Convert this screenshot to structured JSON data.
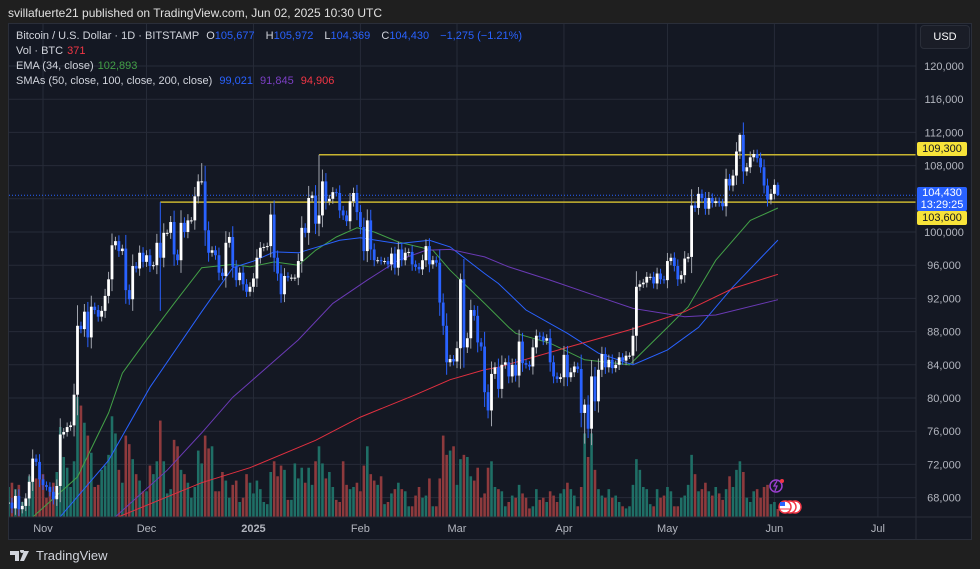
{
  "header": {
    "published": "svillafuerte21 published on TradingView.com, Jun 02, 2025 10:30 UTC"
  },
  "legend": {
    "symbol": "Bitcoin / U.S. Dollar · 1D · BITSTAMP",
    "open_label": "O",
    "open": "105,677",
    "high_label": "H",
    "high": "105,972",
    "low_label": "L",
    "low": "104,369",
    "close_label": "C",
    "close": "104,430",
    "change": "−1,275 (−1.21%)",
    "vol_label": "Vol · BTC",
    "vol": "371",
    "ema_label": "EMA (34, close)",
    "ema": "102,893",
    "sma_label": "SMAs (50, close, 100, close, 200, close)",
    "sma50": "99,021",
    "sma100": "91,845",
    "sma200": "94,906"
  },
  "price_axis": {
    "currency": "USD",
    "current_price": "104,430",
    "countdown": "13:29:25"
  },
  "levels": [
    {
      "label": "109,300",
      "value": 109300,
      "from": "2025-01-20"
    },
    {
      "label": "103,600",
      "value": 103600,
      "from": "2024-12-05"
    }
  ],
  "footer": {
    "brand": "TradingView"
  },
  "colors": {
    "up": "#ffffff",
    "down": "#2962ff",
    "vol_up": "#1f6f66",
    "vol_down": "#8e3a3d",
    "ema": "#43a047",
    "sma50": "#2962ff",
    "sma100": "#6a3ab5",
    "sma200": "#e03040",
    "level": "#c8b530",
    "bg": "#141823",
    "grid": "#262b38"
  },
  "icons": [
    "economic-event-icon",
    "us-flag-icon"
  ],
  "chart_data": {
    "type": "candlestick",
    "symbol": "BTCUSD",
    "interval": "1D",
    "ylim": [
      66000,
      124000
    ],
    "yticks": [
      68000,
      72000,
      76000,
      80000,
      84000,
      88000,
      92000,
      96000,
      100000,
      104000,
      108000,
      112000,
      116000,
      120000
    ],
    "xticks": [
      {
        "label": "Nov",
        "date": "2024-11-01"
      },
      {
        "label": "Dec",
        "date": "2024-12-01"
      },
      {
        "label": "2025",
        "date": "2025-01-01",
        "bold": true
      },
      {
        "label": "Feb",
        "date": "2025-02-01"
      },
      {
        "label": "Mar",
        "date": "2025-03-01"
      },
      {
        "label": "Apr",
        "date": "2025-04-01"
      },
      {
        "label": "May",
        "date": "2025-05-01"
      },
      {
        "label": "Jun",
        "date": "2025-06-01"
      },
      {
        "label": "Jul",
        "date": "2025-07-01"
      }
    ],
    "first_date": "2024-10-22",
    "close": [
      67400,
      66700,
      68200,
      66600,
      67000,
      67900,
      69900,
      72700,
      72300,
      70200,
      69500,
      69300,
      68700,
      67800,
      69400,
      75600,
      75900,
      76500,
      76700,
      80400,
      88700,
      88300,
      90400,
      87300,
      91000,
      90600,
      89800,
      90500,
      92300,
      94300,
      98400,
      98900,
      97700,
      98000,
      93000,
      91900,
      95900,
      95600,
      97500,
      96400,
      97200,
      95900,
      96000,
      98700,
      96900,
      99900,
      99900,
      101200,
      97300,
      96600,
      101100,
      100000,
      101400,
      101400,
      104300,
      106100,
      106100,
      100200,
      97500,
      97800,
      97200,
      95100,
      94700,
      98700,
      99400,
      95800,
      94200,
      95100,
      93700,
      92800,
      93400,
      94400,
      96900,
      98100,
      98200,
      98300,
      102100,
      96900,
      95000,
      92500,
      94700,
      94500,
      94500,
      94500,
      96500,
      100500,
      99900,
      104100,
      104400,
      101000,
      102000,
      106100,
      103700,
      104000,
      104800,
      104700,
      102600,
      102000,
      101300,
      103700,
      104700,
      102400,
      100600,
      97700,
      101400,
      97900,
      96600,
      96600,
      96500,
      96500,
      96100,
      97400,
      95700,
      97900,
      96600,
      97500,
      97600,
      96100,
      95800,
      95500,
      96600,
      98300,
      96100,
      96600,
      96300,
      91500,
      88700,
      84300,
      84700,
      84400,
      86000,
      94300,
      86100,
      87200,
      90600,
      89900,
      86700,
      86200,
      80700,
      78500,
      82900,
      83700,
      81100,
      84000,
      84300,
      82600,
      84000,
      82700,
      86800,
      84200,
      84000,
      83800,
      86100,
      87500,
      87400,
      86900,
      87200,
      84300,
      82600,
      82300,
      82500,
      85200,
      82500,
      83100,
      83800,
      83500,
      78200,
      79200,
      76300,
      82600,
      79600,
      83400,
      85300,
      83700,
      84600,
      83600,
      84000,
      84900,
      84500,
      85100,
      85100,
      87500,
      93400,
      93700,
      93900,
      94600,
      94600,
      93800,
      95000,
      94300,
      94200,
      96500,
      96900,
      95900,
      94300,
      94800,
      96800,
      97000,
      103200,
      102900,
      104600,
      104100,
      102800,
      104100,
      103500,
      103700,
      103500,
      103100,
      106400,
      105600,
      106800,
      109700,
      111700,
      107300,
      107800,
      109000,
      109400,
      108900,
      107800,
      105600,
      103900,
      104600,
      105677,
      104430
    ],
    "extremes": {
      "2024-12-05": {
        "high": 103600,
        "low": 90500
      },
      "2024-12-17": {
        "high": 108300
      },
      "2025-01-20": {
        "high": 109300,
        "low": 99500
      },
      "2025-03-02": {
        "high": 95000
      },
      "2025-03-11": {
        "low": 76600
      },
      "2025-04-07": {
        "low": 74500
      },
      "2025-05-22": {
        "high": 111900
      },
      "2025-06-02": {
        "open": 105677,
        "high": 105972,
        "low": 104369
      }
    },
    "volume": [
      1400,
      1600,
      1300,
      1500,
      700,
      800,
      1900,
      2400,
      1800,
      2200,
      2000,
      900,
      1200,
      1600,
      2100,
      4200,
      2800,
      2300,
      1400,
      2600,
      5600,
      5200,
      4400,
      3800,
      3000,
      1400,
      1500,
      2200,
      2400,
      2900,
      4700,
      3900,
      2200,
      1600,
      3800,
      3400,
      2700,
      2000,
      1700,
      1200,
      1200,
      2400,
      2000,
      2600,
      4500,
      2600,
      1100,
      1300,
      3600,
      3300,
      2200,
      2000,
      1600,
      900,
      1400,
      3100,
      2500,
      3800,
      3200,
      3300,
      1200,
      1200,
      2100,
      1700,
      900,
      1500,
      1700,
      700,
      900,
      2000,
      1600,
      1100,
      1700,
      1300,
      700,
      600,
      2100,
      2600,
      1900,
      2400,
      2200,
      800,
      800,
      2500,
      1800,
      2300,
      1600,
      2300,
      1500,
      2600,
      3300,
      2500,
      1800,
      2100,
      1400,
      800,
      700,
      2600,
      1500,
      1300,
      1400,
      1600,
      1200,
      2400,
      3300,
      2000,
      1700,
      1500,
      1900,
      600,
      700,
      1100,
      1300,
      1600,
      1300,
      1200,
      500,
      500,
      1000,
      1400,
      900,
      1000,
      1800,
      500,
      500,
      1800,
      3800,
      2900,
      3100,
      3300,
      1500,
      2700,
      2900,
      2800,
      1900,
      1700,
      2300,
      900,
      1100,
      2300,
      2600,
      1400,
      1300,
      1200,
      500,
      700,
      1000,
      900,
      1500,
      1100,
      900,
      400,
      500,
      1300,
      800,
      900,
      700,
      1200,
      1000,
      700,
      1100,
      1300,
      1600,
      1300,
      1000,
      500,
      1400,
      3900,
      2800,
      3900,
      2200,
      1300,
      1000,
      900,
      1300,
      900,
      1000,
      700,
      500,
      400,
      500,
      1500,
      2700,
      2200,
      1400,
      1300,
      600,
      500,
      1300,
      900,
      1000,
      1400,
      1200,
      500,
      500,
      900,
      1000,
      1500,
      2900,
      2000,
      1200,
      1300,
      1600,
      1200,
      1000,
      1400,
      1100,
      800,
      1300,
      1900,
      1400,
      2200,
      2600,
      2100,
      900,
      700,
      1200,
      1300,
      900,
      1400,
      1500,
      600,
      700,
      371
    ],
    "indicators": [
      {
        "name": "EMA 34",
        "color_key": "ema",
        "points": [
          [
            "2024-10-29",
            65650
          ],
          [
            "2024-11-11",
            70500
          ],
          [
            "2024-11-20",
            78200
          ],
          [
            "2024-11-24",
            83000
          ],
          [
            "2024-12-01",
            87000
          ],
          [
            "2024-12-09",
            91400
          ],
          [
            "2024-12-17",
            95700
          ],
          [
            "2024-12-26",
            96100
          ],
          [
            "2024-12-31",
            95800
          ],
          [
            "2025-01-07",
            96400
          ],
          [
            "2025-01-14",
            96000
          ],
          [
            "2025-01-19",
            97800
          ],
          [
            "2025-01-25",
            99400
          ],
          [
            "2025-01-31",
            100500
          ],
          [
            "2025-02-05",
            100000
          ],
          [
            "2025-02-12",
            98800
          ],
          [
            "2025-02-22",
            97800
          ],
          [
            "2025-02-27",
            95400
          ],
          [
            "2025-03-04",
            93400
          ],
          [
            "2025-03-09",
            91400
          ],
          [
            "2025-03-16",
            88500
          ],
          [
            "2025-03-18",
            87800
          ],
          [
            "2025-03-28",
            86600
          ],
          [
            "2025-04-07",
            84600
          ],
          [
            "2025-04-20",
            84000
          ],
          [
            "2025-05-01",
            88500
          ],
          [
            "2025-05-07",
            91000
          ],
          [
            "2025-05-15",
            96600
          ],
          [
            "2025-05-25",
            101400
          ],
          [
            "2025-06-02",
            102893
          ]
        ]
      },
      {
        "name": "SMA 50",
        "color_key": "sma50",
        "points": [
          [
            "2024-11-06",
            65700
          ],
          [
            "2024-11-20",
            72500
          ],
          [
            "2024-12-02",
            81300
          ],
          [
            "2024-12-17",
            90400
          ],
          [
            "2024-12-26",
            95700
          ],
          [
            "2025-01-01",
            96500
          ],
          [
            "2025-01-07",
            97600
          ],
          [
            "2025-01-14",
            97500
          ],
          [
            "2025-01-26",
            99000
          ],
          [
            "2025-02-01",
            99300
          ],
          [
            "2025-02-12",
            98600
          ],
          [
            "2025-02-21",
            99000
          ],
          [
            "2025-02-27",
            98200
          ],
          [
            "2025-03-09",
            95000
          ],
          [
            "2025-03-13",
            93800
          ],
          [
            "2025-03-16",
            92600
          ],
          [
            "2025-03-21",
            90600
          ],
          [
            "2025-04-02",
            87800
          ],
          [
            "2025-04-11",
            85400
          ],
          [
            "2025-04-21",
            84000
          ],
          [
            "2025-05-01",
            85800
          ],
          [
            "2025-05-10",
            88500
          ],
          [
            "2025-05-20",
            93400
          ],
          [
            "2025-06-02",
            99021
          ]
        ]
      },
      {
        "name": "SMA 100",
        "color_key": "sma100",
        "points": [
          [
            "2024-11-22",
            65700
          ],
          [
            "2024-12-07",
            71300
          ],
          [
            "2024-12-17",
            75800
          ],
          [
            "2024-12-26",
            80100
          ],
          [
            "2024-12-31",
            81900
          ],
          [
            "2025-01-14",
            87000
          ],
          [
            "2025-01-24",
            91400
          ],
          [
            "2025-02-03",
            94200
          ],
          [
            "2025-02-12",
            96600
          ],
          [
            "2025-02-20",
            97800
          ],
          [
            "2025-02-27",
            97900
          ],
          [
            "2025-03-09",
            97000
          ],
          [
            "2025-03-16",
            95800
          ],
          [
            "2025-03-28",
            94200
          ],
          [
            "2025-04-11",
            92200
          ],
          [
            "2025-04-21",
            90800
          ],
          [
            "2025-05-06",
            89800
          ],
          [
            "2025-05-15",
            90000
          ],
          [
            "2025-06-02",
            91845
          ]
        ]
      },
      {
        "name": "SMA 200",
        "color_key": "sma200",
        "points": [
          [
            "2024-11-23",
            65700
          ],
          [
            "2024-12-17",
            69800
          ],
          [
            "2024-12-31",
            71600
          ],
          [
            "2025-01-19",
            74900
          ],
          [
            "2025-02-01",
            77700
          ],
          [
            "2025-02-17",
            80400
          ],
          [
            "2025-02-27",
            82200
          ],
          [
            "2025-03-09",
            83400
          ],
          [
            "2025-03-13",
            83700
          ],
          [
            "2025-04-02",
            86100
          ],
          [
            "2025-04-20",
            88200
          ],
          [
            "2025-05-06",
            90400
          ],
          [
            "2025-05-20",
            93200
          ],
          [
            "2025-06-02",
            94906
          ]
        ]
      }
    ]
  }
}
